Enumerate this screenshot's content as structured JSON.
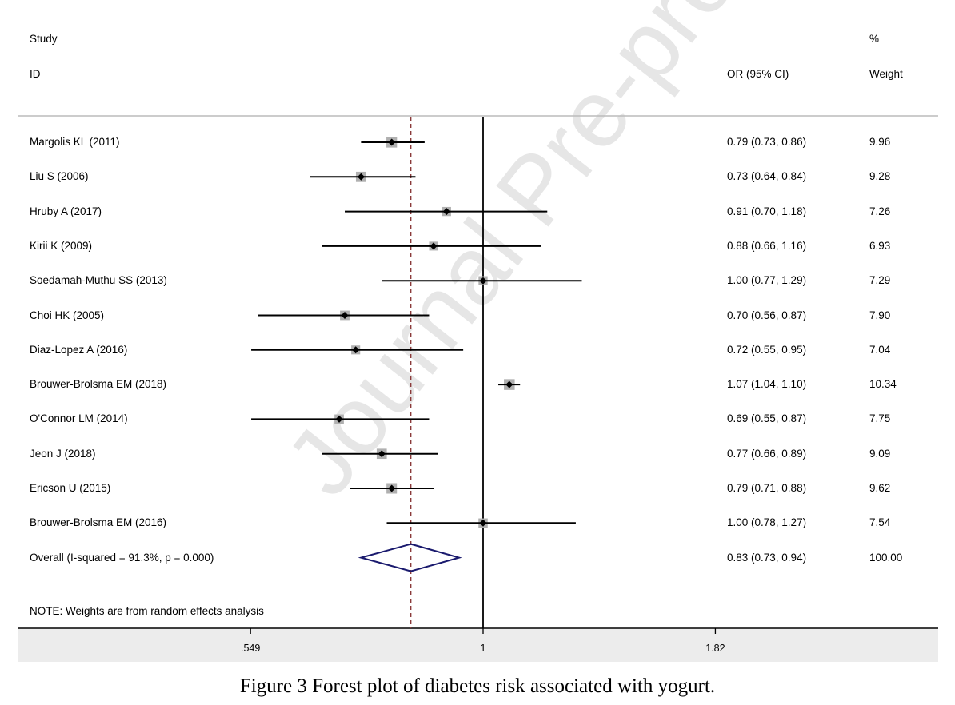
{
  "header": {
    "study_line1": "Study",
    "study_line2": "ID",
    "or_header": "OR (95% CI)",
    "weight_line1": "%",
    "weight_line2": "Weight"
  },
  "note": "NOTE: Weights are from random effects analysis",
  "caption": "Figure 3 Forest plot of diabetes risk associated with yogurt.",
  "watermark": "Journal Pre-proof",
  "colors": {
    "ci_line": "#000000",
    "weight_box": "#b0b0b0",
    "null_line": "#000000",
    "pooled_line": "#8b3a3a",
    "diamond": "#1a1a6e",
    "axis_band": "#ececec"
  },
  "chart_data": {
    "type": "forest",
    "x_scale": "log",
    "xlim": [
      0.5,
      2.0
    ],
    "null_value": 1,
    "x_ticks": [
      {
        "value": 0.549,
        "label": ".549"
      },
      {
        "value": 1,
        "label": "1"
      },
      {
        "value": 1.82,
        "label": "1.82"
      }
    ],
    "studies": [
      {
        "name": "Margolis KL (2011)",
        "or": 0.79,
        "lo": 0.73,
        "hi": 0.86,
        "label": "0.79 (0.73, 0.86)",
        "weight": 9.96,
        "weight_label": "9.96"
      },
      {
        "name": "Liu S (2006)",
        "or": 0.73,
        "lo": 0.64,
        "hi": 0.84,
        "label": "0.73 (0.64, 0.84)",
        "weight": 9.28,
        "weight_label": "9.28"
      },
      {
        "name": "Hruby A (2017)",
        "or": 0.91,
        "lo": 0.7,
        "hi": 1.18,
        "label": "0.91 (0.70, 1.18)",
        "weight": 7.26,
        "weight_label": "7.26"
      },
      {
        "name": "Kirii K (2009)",
        "or": 0.88,
        "lo": 0.66,
        "hi": 1.16,
        "label": "0.88 (0.66, 1.16)",
        "weight": 6.93,
        "weight_label": "6.93"
      },
      {
        "name": "Soedamah-Muthu SS (2013)",
        "or": 1.0,
        "lo": 0.77,
        "hi": 1.29,
        "label": "1.00 (0.77, 1.29)",
        "weight": 7.29,
        "weight_label": "7.29"
      },
      {
        "name": "Choi HK (2005)",
        "or": 0.7,
        "lo": 0.56,
        "hi": 0.87,
        "label": "0.70 (0.56, 0.87)",
        "weight": 7.9,
        "weight_label": "7.90"
      },
      {
        "name": "Diaz-Lopez A (2016)",
        "or": 0.72,
        "lo": 0.55,
        "hi": 0.95,
        "label": "0.72 (0.55, 0.95)",
        "weight": 7.04,
        "weight_label": "7.04"
      },
      {
        "name": "Brouwer-Brolsma EM (2018)",
        "or": 1.07,
        "lo": 1.04,
        "hi": 1.1,
        "label": "1.07 (1.04, 1.10)",
        "weight": 10.34,
        "weight_label": "10.34"
      },
      {
        "name": "O'Connor LM (2014)",
        "or": 0.69,
        "lo": 0.55,
        "hi": 0.87,
        "label": "0.69 (0.55, 0.87)",
        "weight": 7.75,
        "weight_label": "7.75"
      },
      {
        "name": "Jeon J (2018)",
        "or": 0.77,
        "lo": 0.66,
        "hi": 0.89,
        "label": "0.77 (0.66, 0.89)",
        "weight": 9.09,
        "weight_label": "9.09"
      },
      {
        "name": "Ericson U (2015)",
        "or": 0.79,
        "lo": 0.71,
        "hi": 0.88,
        "label": "0.79 (0.71, 0.88)",
        "weight": 9.62,
        "weight_label": "9.62"
      },
      {
        "name": "Brouwer-Brolsma EM (2016)",
        "or": 1.0,
        "lo": 0.78,
        "hi": 1.27,
        "label": "1.00 (0.78, 1.27)",
        "weight": 7.54,
        "weight_label": "7.54"
      }
    ],
    "overall": {
      "name": "Overall  (I-squared = 91.3%, p = 0.000)",
      "or": 0.83,
      "lo": 0.73,
      "hi": 0.94,
      "label": "0.83 (0.73, 0.94)",
      "weight_label": "100.00"
    }
  }
}
